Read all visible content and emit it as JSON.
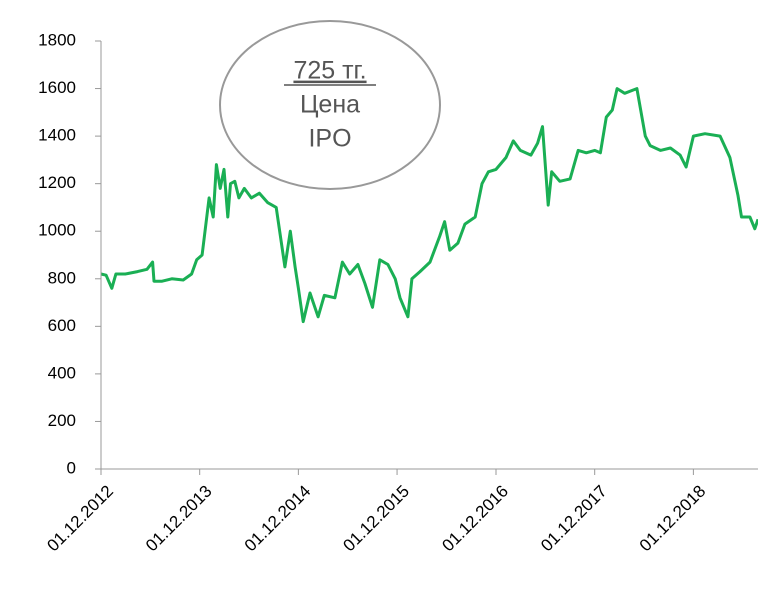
{
  "chart_data": {
    "type": "line",
    "annotation": {
      "price": "725 тг.",
      "line1": "Цена",
      "line2": "IPO"
    },
    "x": [
      "2012-12-01",
      "2012-12-20",
      "2013-01-10",
      "2013-01-25",
      "2013-03-01",
      "2013-04-15",
      "2013-05-20",
      "2013-06-10",
      "2013-06-15",
      "2013-07-15",
      "2013-08-20",
      "2013-10-01",
      "2013-11-01",
      "2013-11-20",
      "2013-12-10",
      "2014-01-05",
      "2014-01-20",
      "2014-02-01",
      "2014-02-15",
      "2014-03-01",
      "2014-03-15",
      "2014-03-25",
      "2014-04-10",
      "2014-04-25",
      "2014-05-15",
      "2014-06-10",
      "2014-07-10",
      "2014-08-10",
      "2014-09-10",
      "2014-10-12",
      "2014-11-01",
      "2014-11-19",
      "2014-12-01",
      "2014-12-19",
      "2015-01-13",
      "2015-02-12",
      "2015-03-07",
      "2015-04-15",
      "2015-05-13",
      "2015-06-09",
      "2015-07-09",
      "2015-08-04",
      "2015-09-01",
      "2015-09-28",
      "2015-10-28",
      "2015-11-24",
      "2015-12-12",
      "2016-01-10",
      "2016-01-25",
      "2016-02-24",
      "2016-04-01",
      "2016-05-07",
      "2016-05-25",
      "2016-06-13",
      "2016-07-13",
      "2016-08-08",
      "2016-09-15",
      "2016-10-10",
      "2016-11-03",
      "2016-12-01",
      "2017-01-07",
      "2017-02-03",
      "2017-03-01",
      "2017-04-09",
      "2017-05-04",
      "2017-05-22",
      "2017-06-12",
      "2017-06-25",
      "2017-07-25",
      "2017-09-01",
      "2017-10-01",
      "2017-10-31",
      "2017-12-01",
      "2017-12-22",
      "2018-01-13",
      "2018-02-04",
      "2018-02-22",
      "2018-03-22",
      "2018-05-06",
      "2018-06-06",
      "2018-06-24",
      "2018-08-01",
      "2018-09-07",
      "2018-10-13",
      "2018-11-04",
      "2018-12-01",
      "2019-01-13",
      "2019-03-10",
      "2019-04-15",
      "2019-05-15",
      "2019-05-28",
      "2019-06-28",
      "2019-07-16",
      "2019-07-28"
    ],
    "series": [
      {
        "name": "Цена",
        "color": "#1aaf54",
        "values": [
          820,
          815,
          760,
          820,
          820,
          830,
          840,
          870,
          790,
          790,
          800,
          795,
          820,
          880,
          900,
          1140,
          1060,
          1280,
          1180,
          1260,
          1060,
          1200,
          1210,
          1140,
          1180,
          1140,
          1160,
          1120,
          1100,
          850,
          1000,
          850,
          760,
          620,
          740,
          640,
          730,
          720,
          870,
          820,
          860,
          780,
          680,
          880,
          860,
          800,
          720,
          640,
          800,
          830,
          870,
          980,
          1040,
          920,
          950,
          1030,
          1060,
          1200,
          1250,
          1260,
          1310,
          1380,
          1340,
          1320,
          1370,
          1440,
          1110,
          1250,
          1210,
          1220,
          1340,
          1330,
          1340,
          1330,
          1480,
          1510,
          1600,
          1580,
          1600,
          1400,
          1360,
          1340,
          1350,
          1320,
          1270,
          1400,
          1410,
          1400,
          1310,
          1150,
          1060,
          1060,
          1010,
          1050
        ]
      }
    ],
    "xlim": [
      "2012-12-01",
      "2019-07-28"
    ],
    "xticks": [
      {
        "value": "2012-12-01",
        "label": "01.12.2012"
      },
      {
        "value": "2013-12-01",
        "label": "01.12.2013"
      },
      {
        "value": "2014-12-01",
        "label": "01.12.2014"
      },
      {
        "value": "2015-12-01",
        "label": "01.12.2015"
      },
      {
        "value": "2016-12-01",
        "label": "01.12.2016"
      },
      {
        "value": "2017-12-01",
        "label": "01.12.2017"
      },
      {
        "value": "2018-12-01",
        "label": "01.12.2018"
      }
    ],
    "ylim": [
      0,
      1800
    ],
    "yticks": [
      0,
      200,
      400,
      600,
      800,
      1000,
      1200,
      1400,
      1600,
      1800
    ],
    "grid": false
  }
}
